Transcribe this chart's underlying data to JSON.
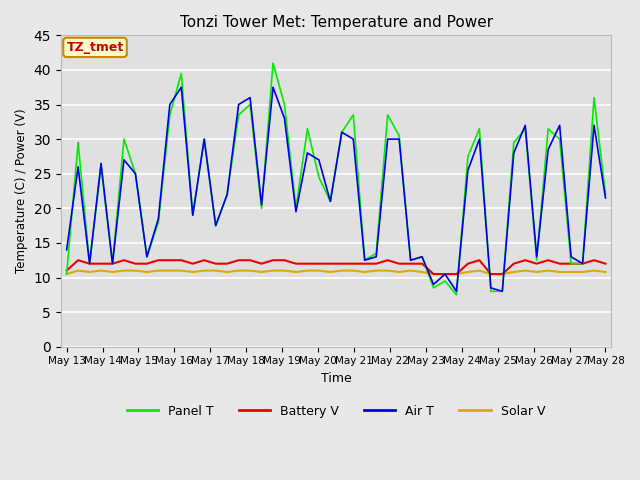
{
  "title": "Tonzi Tower Met: Temperature and Power",
  "xlabel": "Time",
  "ylabel": "Temperature (C) / Power (V)",
  "ylim": [
    0,
    45
  ],
  "yticks": [
    0,
    5,
    10,
    15,
    20,
    25,
    30,
    35,
    40,
    45
  ],
  "x_labels": [
    "May 13",
    "May 14",
    "May 15",
    "May 16",
    "May 17",
    "May 18",
    "May 19",
    "May 20",
    "May 21",
    "May 22",
    "May 23",
    "May 24",
    "May 25",
    "May 26",
    "May 27",
    "May 28"
  ],
  "background_color": "#e8e8e8",
  "plot_bg_color": "#e0e0e0",
  "grid_color": "#ffffff",
  "panel_T_color": "#00ee00",
  "battery_V_color": "#ee0000",
  "air_T_color": "#0000ee",
  "solar_V_color": "#ddaa00",
  "annotation_text": "TZ_tmet",
  "annotation_facecolor": "#ffffcc",
  "annotation_edgecolor": "#cc8800",
  "annotation_textcolor": "#cc0000",
  "panel_T": [
    10.5,
    29.5,
    12.0,
    26.0,
    12.0,
    30.0,
    25.0,
    13.0,
    18.0,
    33.5,
    39.5,
    19.0,
    30.0,
    17.5,
    22.0,
    33.5,
    35.0,
    20.0,
    41.0,
    35.0,
    20.0,
    31.5,
    24.5,
    21.0,
    31.0,
    33.5,
    12.5,
    13.5,
    33.5,
    30.5,
    12.5,
    13.0,
    8.5,
    9.5,
    7.5,
    27.5,
    31.5,
    8.0,
    8.0,
    29.5,
    31.5,
    12.5,
    31.5,
    30.0,
    12.0,
    12.0,
    36.0,
    22.0
  ],
  "battery_V": [
    11.0,
    12.5,
    12.0,
    12.0,
    12.0,
    12.5,
    12.0,
    12.0,
    12.5,
    12.5,
    12.5,
    12.0,
    12.5,
    12.0,
    12.0,
    12.5,
    12.5,
    12.0,
    12.5,
    12.5,
    12.0,
    12.0,
    12.0,
    12.0,
    12.0,
    12.0,
    12.0,
    12.0,
    12.5,
    12.0,
    12.0,
    12.0,
    10.5,
    10.5,
    10.5,
    12.0,
    12.5,
    10.5,
    10.5,
    12.0,
    12.5,
    12.0,
    12.5,
    12.0,
    12.0,
    12.0,
    12.5,
    12.0
  ],
  "air_T": [
    14.0,
    26.0,
    12.0,
    26.5,
    12.0,
    27.0,
    25.0,
    13.0,
    18.5,
    35.0,
    37.5,
    19.0,
    30.0,
    17.5,
    22.0,
    35.0,
    36.0,
    20.5,
    37.5,
    33.0,
    19.5,
    28.0,
    27.0,
    21.0,
    31.0,
    30.0,
    12.5,
    13.0,
    30.0,
    30.0,
    12.5,
    13.0,
    9.0,
    10.5,
    8.0,
    25.5,
    30.0,
    8.5,
    8.0,
    28.0,
    32.0,
    13.0,
    28.5,
    32.0,
    13.0,
    12.0,
    32.0,
    21.5
  ],
  "solar_V": [
    10.5,
    11.0,
    10.8,
    11.0,
    10.8,
    11.0,
    11.0,
    10.8,
    11.0,
    11.0,
    11.0,
    10.8,
    11.0,
    11.0,
    10.8,
    11.0,
    11.0,
    10.8,
    11.0,
    11.0,
    10.8,
    11.0,
    11.0,
    10.8,
    11.0,
    11.0,
    10.8,
    11.0,
    11.0,
    10.8,
    11.0,
    10.8,
    10.5,
    10.5,
    10.5,
    10.8,
    11.0,
    10.5,
    10.5,
    10.8,
    11.0,
    10.8,
    11.0,
    10.8,
    10.8,
    10.8,
    11.0,
    10.8
  ],
  "n_points": 48
}
